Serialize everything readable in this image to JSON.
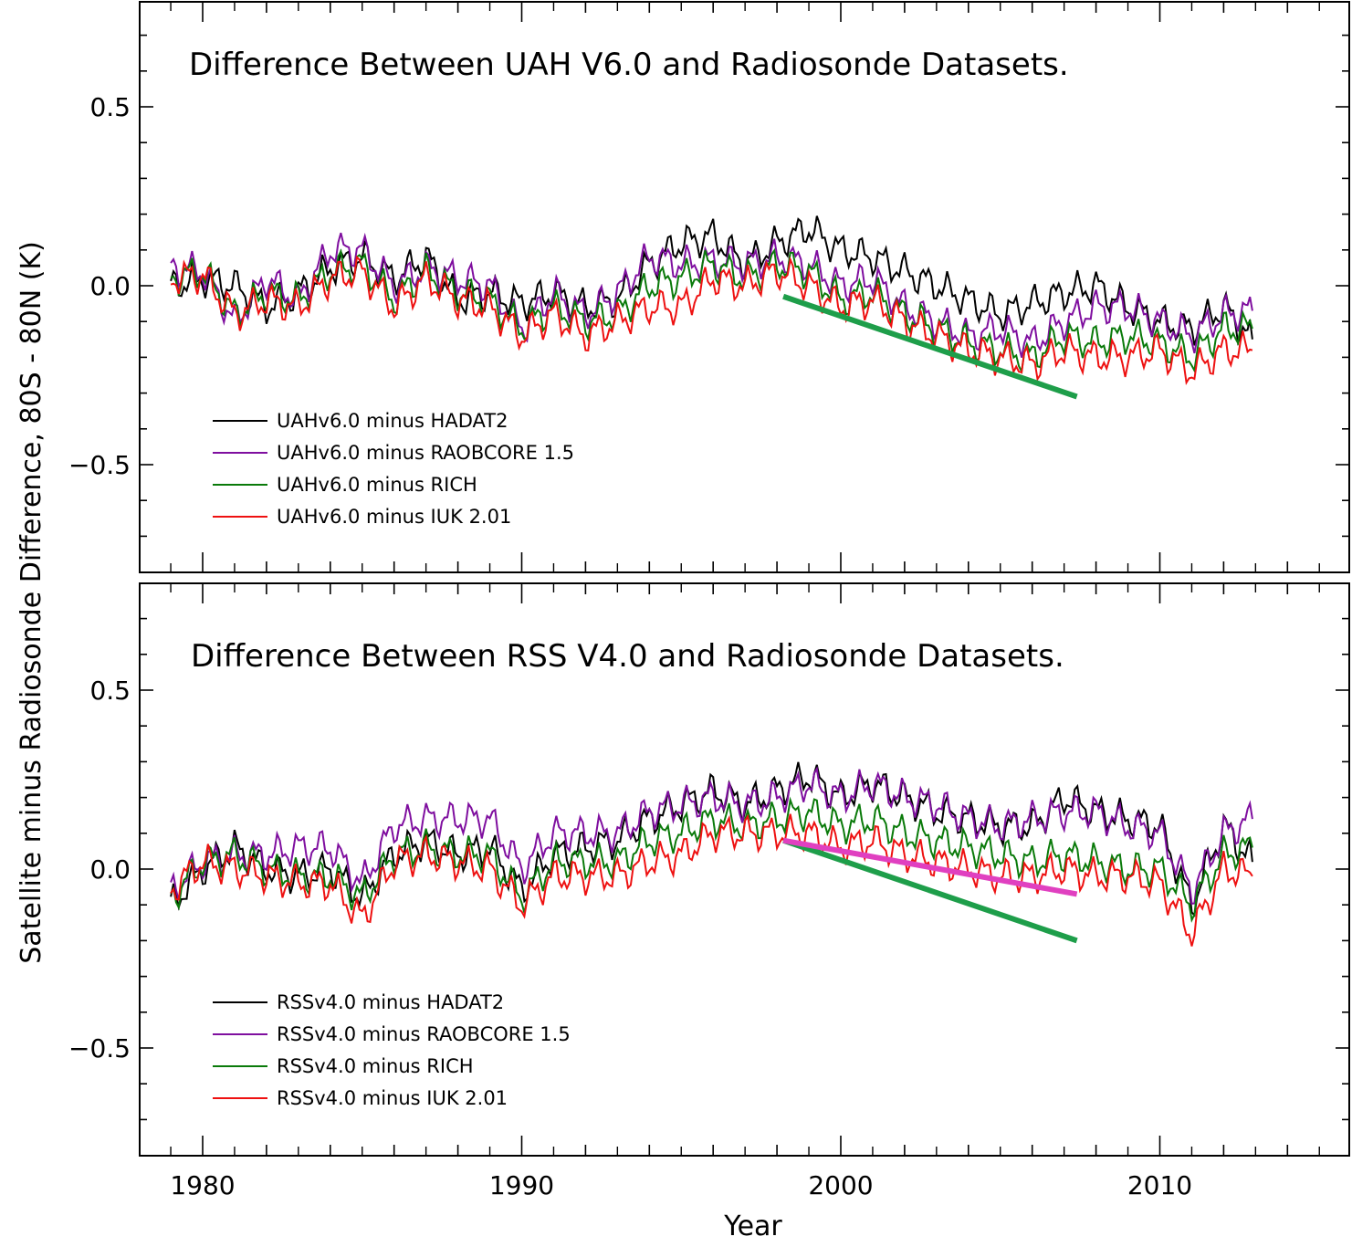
{
  "y_axis_label": "Satellite minus Radiosonde Difference, 80S - 80N (K)",
  "x_axis_label": "Year",
  "chart_data": [
    {
      "type": "line",
      "title": "Difference Between UAH V6.0 and Radiosonde Datasets.",
      "xlabel": "Year",
      "ylabel": "Satellite minus Radiosonde Difference, 80S - 80N (K)",
      "xlim": [
        1978,
        2016
      ],
      "ylim": [
        -0.8,
        0.8
      ],
      "x_ticks": [
        1980,
        1990,
        2000,
        2010
      ],
      "x_tick_labels": [
        "1980",
        "1990",
        "2000",
        "2010"
      ],
      "y_ticks": [
        -0.5,
        0.0,
        0.5
      ],
      "y_tick_labels": [
        "−0.5",
        "0.0",
        "0.5"
      ],
      "x": [
        1979.0,
        1980.0,
        1981.0,
        1982.0,
        1983.0,
        1984.0,
        1985.0,
        1986.0,
        1987.0,
        1988.0,
        1989.0,
        1990.0,
        1991.0,
        1992.0,
        1993.0,
        1994.0,
        1995.0,
        1996.0,
        1997.0,
        1998.0,
        1999.0,
        2000.0,
        2001.0,
        2002.0,
        2003.0,
        2004.0,
        2005.0,
        2006.0,
        2007.0,
        2008.0,
        2009.0,
        2010.0,
        2011.0,
        2012.0,
        2012.9
      ],
      "series": [
        {
          "name": "UAHv6.0 minus HADAT2",
          "color": "#000000",
          "values": [
            0.0,
            0.02,
            0.0,
            -0.06,
            -0.02,
            0.05,
            0.08,
            0.02,
            0.08,
            -0.04,
            -0.02,
            -0.05,
            -0.02,
            -0.06,
            -0.04,
            0.06,
            0.12,
            0.14,
            0.06,
            0.12,
            0.16,
            0.1,
            0.08,
            0.04,
            0.0,
            -0.04,
            -0.08,
            -0.05,
            -0.02,
            0.0,
            -0.06,
            -0.1,
            -0.12,
            -0.06,
            -0.15
          ]
        },
        {
          "name": "UAHv6.0 minus RAOBCORE 1.5",
          "color": "#7f0f9f",
          "values": [
            0.05,
            0.04,
            -0.1,
            0.02,
            -0.04,
            0.1,
            0.1,
            0.0,
            0.05,
            0.02,
            0.0,
            -0.12,
            -0.02,
            -0.08,
            -0.02,
            0.08,
            0.06,
            0.07,
            0.06,
            0.08,
            0.06,
            0.0,
            0.02,
            -0.06,
            -0.1,
            -0.14,
            -0.12,
            -0.16,
            -0.1,
            -0.06,
            -0.06,
            -0.1,
            -0.14,
            -0.08,
            -0.07
          ]
        },
        {
          "name": "UAHv6.0 minus RICH",
          "color": "#0a7a0a",
          "values": [
            0.02,
            0.04,
            -0.08,
            -0.02,
            -0.04,
            0.04,
            0.06,
            -0.04,
            0.04,
            -0.02,
            -0.04,
            -0.12,
            -0.06,
            -0.1,
            -0.08,
            0.0,
            0.02,
            0.06,
            0.02,
            0.06,
            0.04,
            -0.04,
            -0.02,
            -0.08,
            -0.12,
            -0.16,
            -0.18,
            -0.2,
            -0.14,
            -0.16,
            -0.14,
            -0.16,
            -0.2,
            -0.12,
            -0.12
          ]
        },
        {
          "name": "UAHv6.0 minus IUK 2.01",
          "color": "#ee1111",
          "values": [
            0.02,
            0.03,
            -0.08,
            -0.04,
            -0.06,
            0.02,
            0.04,
            -0.06,
            0.02,
            -0.04,
            -0.06,
            -0.14,
            -0.08,
            -0.14,
            -0.1,
            -0.06,
            -0.06,
            0.02,
            0.0,
            0.04,
            0.0,
            -0.06,
            -0.04,
            -0.1,
            -0.14,
            -0.18,
            -0.2,
            -0.22,
            -0.18,
            -0.2,
            -0.2,
            -0.18,
            -0.24,
            -0.18,
            -0.18
          ]
        }
      ],
      "trend_lines": [
        {
          "color": "#1e9e4a",
          "x": [
            1998.2,
            2007.4
          ],
          "y": [
            -0.03,
            -0.31
          ]
        }
      ]
    },
    {
      "type": "line",
      "title": "Difference Between RSS V4.0 and Radiosonde Datasets.",
      "xlabel": "Year",
      "ylabel": "Satellite minus Radiosonde Difference, 80S - 80N (K)",
      "xlim": [
        1978,
        2016
      ],
      "ylim": [
        -0.8,
        0.8
      ],
      "x_ticks": [
        1980,
        1990,
        2000,
        2010
      ],
      "x_tick_labels": [
        "1980",
        "1990",
        "2000",
        "2010"
      ],
      "y_ticks": [
        -0.5,
        0.0,
        0.5
      ],
      "y_tick_labels": [
        "−0.5",
        "0.0",
        "0.5"
      ],
      "x": [
        1979.0,
        1980.0,
        1981.0,
        1982.0,
        1983.0,
        1984.0,
        1985.0,
        1986.0,
        1987.0,
        1988.0,
        1989.0,
        1990.0,
        1991.0,
        1992.0,
        1993.0,
        1994.0,
        1995.0,
        1996.0,
        1997.0,
        1998.0,
        1999.0,
        2000.0,
        2001.0,
        2002.0,
        2003.0,
        2004.0,
        2005.0,
        2006.0,
        2007.0,
        2008.0,
        2009.0,
        2010.0,
        2011.0,
        2012.0,
        2012.9
      ],
      "series": [
        {
          "name": "RSSv4.0 minus HADAT2",
          "color": "#000000",
          "values": [
            -0.1,
            0.0,
            0.06,
            0.0,
            -0.02,
            0.0,
            -0.08,
            0.04,
            0.08,
            0.04,
            0.06,
            -0.06,
            0.04,
            0.06,
            0.08,
            0.14,
            0.18,
            0.22,
            0.18,
            0.22,
            0.26,
            0.2,
            0.24,
            0.2,
            0.16,
            0.14,
            0.12,
            0.12,
            0.2,
            0.16,
            0.14,
            0.12,
            -0.1,
            0.12,
            0.02
          ]
        },
        {
          "name": "RSSv4.0 minus RAOBCORE 1.5",
          "color": "#7f0f9f",
          "values": [
            -0.06,
            0.02,
            0.04,
            0.04,
            0.06,
            0.06,
            -0.04,
            0.12,
            0.14,
            0.14,
            0.14,
            0.0,
            0.1,
            0.1,
            0.1,
            0.16,
            0.18,
            0.2,
            0.18,
            0.2,
            0.24,
            0.2,
            0.24,
            0.2,
            0.18,
            0.14,
            0.12,
            0.14,
            0.16,
            0.16,
            0.12,
            0.1,
            -0.06,
            0.1,
            0.14
          ]
        },
        {
          "name": "RSSv4.0 minus RICH",
          "color": "#0a7a0a",
          "values": [
            -0.08,
            0.02,
            0.04,
            0.0,
            -0.02,
            -0.02,
            -0.08,
            0.04,
            0.06,
            0.04,
            0.04,
            -0.08,
            0.02,
            0.02,
            0.02,
            0.08,
            0.1,
            0.14,
            0.12,
            0.14,
            0.16,
            0.12,
            0.14,
            0.1,
            0.08,
            0.06,
            0.04,
            0.02,
            0.04,
            0.02,
            0.0,
            0.0,
            -0.1,
            0.04,
            0.06
          ]
        },
        {
          "name": "RSSv4.0 minus IUK 2.01",
          "color": "#ee1111",
          "values": [
            -0.06,
            0.02,
            0.0,
            -0.02,
            -0.04,
            -0.04,
            -0.14,
            0.02,
            0.04,
            0.02,
            0.0,
            -0.1,
            -0.02,
            -0.02,
            -0.02,
            0.02,
            0.04,
            0.1,
            0.1,
            0.1,
            0.1,
            0.06,
            0.08,
            0.04,
            0.02,
            0.0,
            -0.02,
            -0.02,
            0.0,
            -0.02,
            -0.02,
            -0.04,
            -0.18,
            0.0,
            -0.02
          ]
        }
      ],
      "trend_lines": [
        {
          "color": "#1e9e4a",
          "x": [
            1998.2,
            2007.4
          ],
          "y": [
            0.08,
            -0.2
          ]
        },
        {
          "color": "#e040c0",
          "x": [
            1998.2,
            2007.4
          ],
          "y": [
            0.08,
            -0.07
          ]
        }
      ]
    }
  ]
}
